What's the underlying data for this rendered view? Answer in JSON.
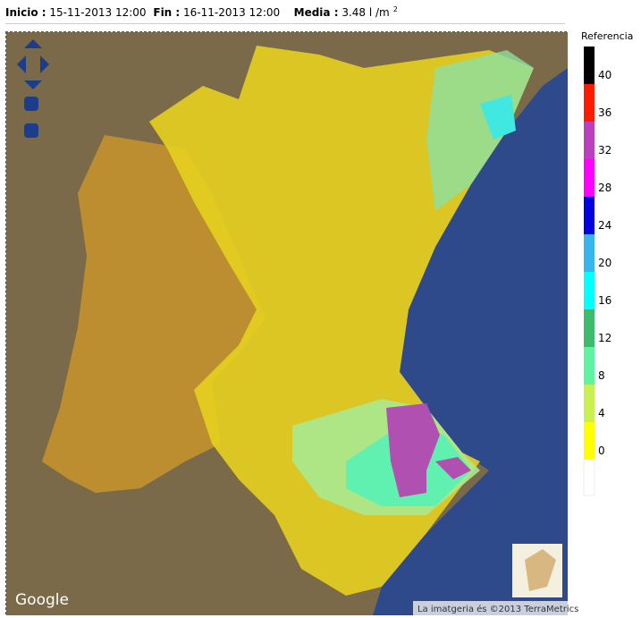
{
  "header": {
    "start_label": "Inicio :",
    "start": "15-11-2013 12:00",
    "end_label": "Fin :",
    "end": "16-11-2013 12:00",
    "mean_label": "Media :",
    "mean": "3.48 l /m",
    "mean_sup": "2"
  },
  "legend": {
    "title": "Referencia",
    "items": [
      {
        "value": 40,
        "color": "#000000"
      },
      {
        "value": 36,
        "color": "#ff1a00"
      },
      {
        "value": 32,
        "color": "#bb3fbf"
      },
      {
        "value": 28,
        "color": "#ff00ff"
      },
      {
        "value": 24,
        "color": "#0000e0"
      },
      {
        "value": 20,
        "color": "#38b4f0"
      },
      {
        "value": 16,
        "color": "#00ffff"
      },
      {
        "value": 12,
        "color": "#3cbc6c"
      },
      {
        "value": 8,
        "color": "#5cf4a0"
      },
      {
        "value": 4,
        "color": "#c8f050"
      },
      {
        "value": 0,
        "color": "#ffff00"
      }
    ],
    "base_color": "#ffffff"
  },
  "map": {
    "logo": "Google",
    "attribution": "La imatgeria és ©2013 TerraMetrics"
  }
}
